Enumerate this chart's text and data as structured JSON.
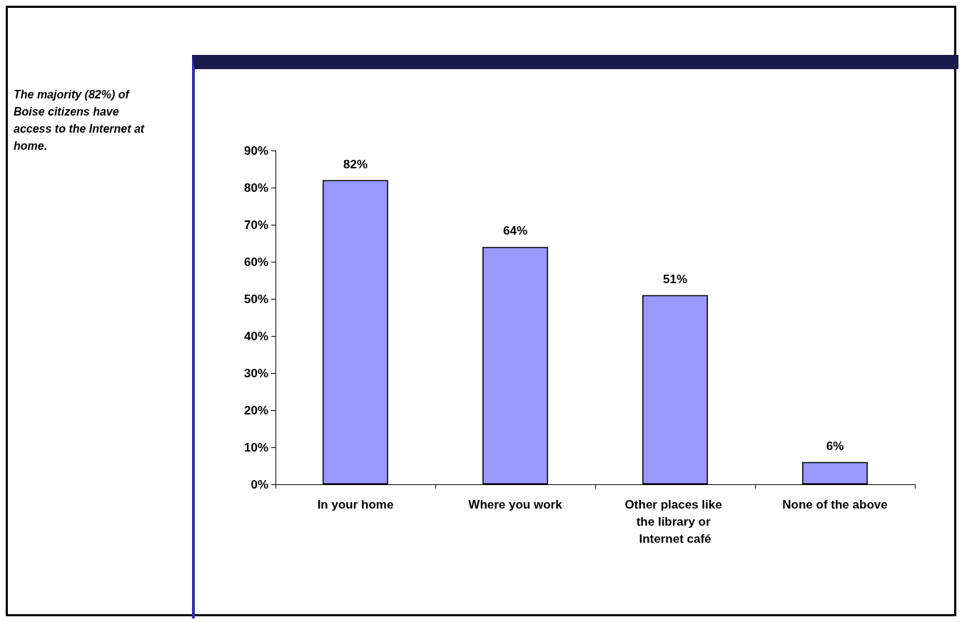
{
  "chart_data": {
    "type": "bar",
    "categories": [
      "In your home",
      "Where you work",
      "Other places like the library or Internet café",
      "None of the above"
    ],
    "values": [
      82,
      64,
      51,
      6
    ],
    "value_labels": [
      "82%",
      "64%",
      "51%",
      "6%"
    ],
    "color": "#9999ff",
    "ylim": [
      0,
      90
    ],
    "yticks": [
      {
        "value": 0,
        "label": "0%"
      },
      {
        "value": 10,
        "label": "10%"
      },
      {
        "value": 20,
        "label": "20%"
      },
      {
        "value": 30,
        "label": "30%"
      },
      {
        "value": 40,
        "label": "40%"
      },
      {
        "value": 50,
        "label": "50%"
      },
      {
        "value": 60,
        "label": "60%"
      },
      {
        "value": 70,
        "label": "70%"
      },
      {
        "value": 80,
        "label": "80%"
      },
      {
        "value": 90,
        "label": "90%"
      }
    ],
    "grid": false,
    "annotations": [
      "The majority (82%) of Boise citizens have access to the Internet at home."
    ]
  }
}
